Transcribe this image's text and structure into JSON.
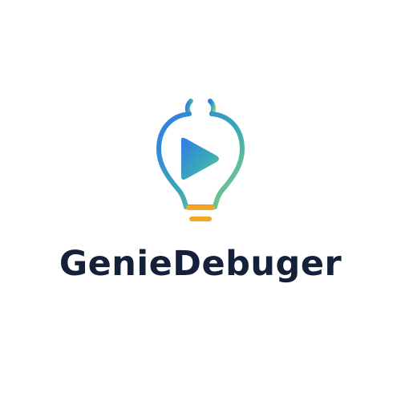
{
  "brand": {
    "name": "GenieDebuger",
    "text_color": "#15213a",
    "icon": "lightbulb-bug-play-icon",
    "gradient": {
      "blue": "#2f7be8",
      "teal": "#3aa9b8",
      "green": "#74c98a",
      "orange": "#f5a623"
    }
  }
}
